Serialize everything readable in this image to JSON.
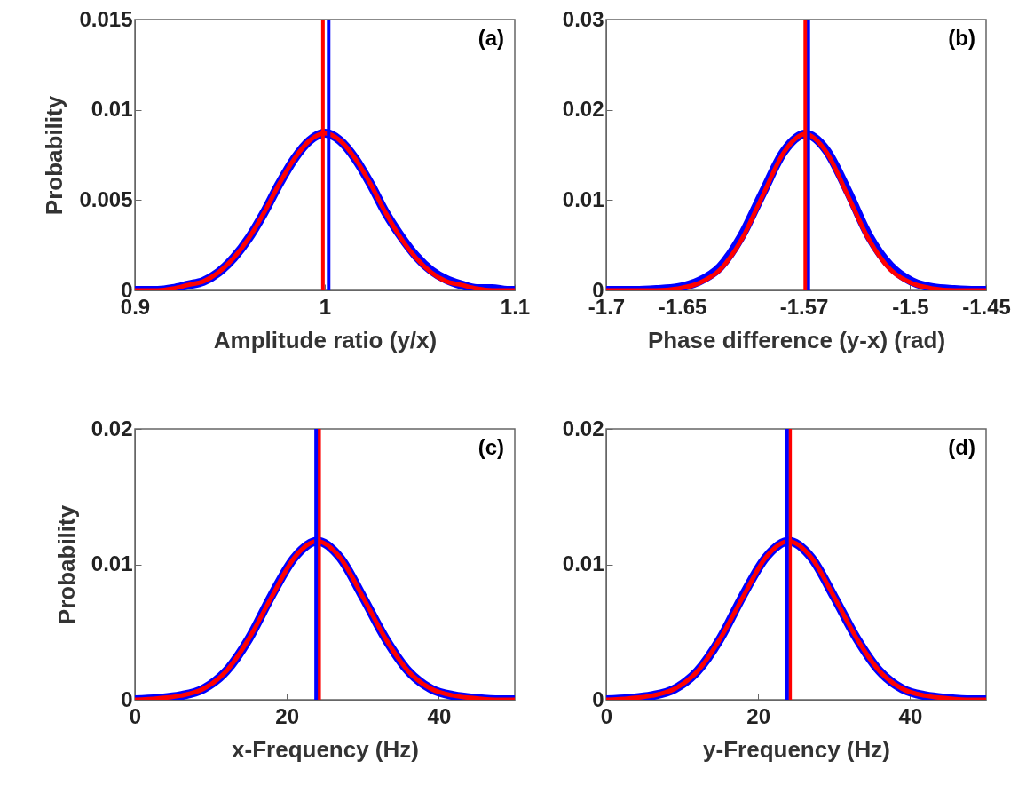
{
  "chart_data": [
    {
      "type": "line",
      "xlabel": "Amplitude ratio (y/x)",
      "ylabel": "Probability",
      "annotations": [
        "(a)"
      ],
      "x": [
        0.9,
        0.904,
        0.912,
        0.92,
        0.928,
        0.936,
        0.944,
        0.952,
        0.96,
        0.968,
        0.976,
        0.984,
        0.992,
        1,
        1.008,
        1.016,
        1.024,
        1.032,
        1.04,
        1.048,
        1.056,
        1.064,
        1.072,
        1.08,
        1.088,
        1.096,
        1.1
      ],
      "series": [
        {
          "color": "#0000ff",
          "values": [
            0,
            0,
            0,
            0.0001,
            0.0003,
            0.0005,
            0.001,
            0.0018,
            0.0029,
            0.0043,
            0.0059,
            0.0073,
            0.0083,
            0.0087,
            0.0083,
            0.0073,
            0.0059,
            0.0043,
            0.003,
            0.0019,
            0.0011,
            0.0006,
            0.0003,
            0.0001,
            0.0001,
            0,
            0
          ]
        },
        {
          "color": "#ff0000",
          "values": [
            0,
            0,
            0,
            0.0001,
            0.0003,
            0.0005,
            0.001,
            0.0018,
            0.0029,
            0.0043,
            0.0059,
            0.0073,
            0.0083,
            0.0087,
            0.0083,
            0.0073,
            0.0059,
            0.0043,
            0.0029,
            0.0018,
            0.001,
            0.0005,
            0.0003,
            0.0001,
            0,
            0,
            0
          ]
        }
      ],
      "ref_lines": [
        {
          "axis": "x",
          "value": 0.999,
          "color": "#ff0000"
        },
        {
          "axis": "x",
          "value": 1.002,
          "color": "#0000ff"
        }
      ],
      "xlim": [
        0.9,
        1.1
      ],
      "xticks": [
        0.9,
        1,
        1.1
      ],
      "ylim": [
        0,
        0.015
      ],
      "yticks": [
        0,
        0.005,
        0.01,
        0.015
      ],
      "grid": false,
      "legend": false
    },
    {
      "type": "line",
      "xlabel": "Phase difference (y-x) (rad)",
      "annotations": [
        "(b)"
      ],
      "x": [
        -1.7,
        -1.681,
        -1.667,
        -1.653,
        -1.639,
        -1.625,
        -1.611,
        -1.597,
        -1.583,
        -1.569,
        -1.555,
        -1.541,
        -1.527,
        -1.513,
        -1.499,
        -1.485,
        -1.471,
        -1.457,
        -1.45
      ],
      "series": [
        {
          "color": "#0000ff",
          "values": [
            0,
            0,
            0.0001,
            0.0003,
            0.001,
            0.0026,
            0.006,
            0.0108,
            0.0154,
            0.0173,
            0.0155,
            0.011,
            0.006,
            0.0027,
            0.001,
            0.0003,
            0.0001,
            0,
            0
          ]
        },
        {
          "color": "#ff0000",
          "values": [
            0,
            0,
            0,
            0.0002,
            0.0008,
            0.0023,
            0.0056,
            0.0105,
            0.0153,
            0.0173,
            0.0153,
            0.0105,
            0.0056,
            0.0023,
            0.0008,
            0.0002,
            0,
            0,
            0
          ]
        }
      ],
      "ref_lines": [
        {
          "axis": "x",
          "value": -1.567,
          "color": "#0000ff"
        },
        {
          "axis": "x",
          "value": -1.569,
          "color": "#ff0000"
        }
      ],
      "xlim": [
        -1.7,
        -1.45
      ],
      "xticks": [
        -1.7,
        -1.65,
        -1.57,
        -1.5,
        -1.45
      ],
      "ylim": [
        0,
        0.03
      ],
      "yticks": [
        0,
        0.01,
        0.02,
        0.03
      ],
      "grid": false,
      "legend": false
    },
    {
      "type": "line",
      "xlabel": "x-Frequency (Hz)",
      "ylabel": "Probability",
      "annotations": [
        "(c)"
      ],
      "x": [
        0,
        3,
        6,
        9,
        12,
        15,
        18,
        21,
        24,
        27,
        30,
        33,
        36,
        39,
        42,
        45,
        48,
        50
      ],
      "series": [
        {
          "color": "#0000ff",
          "values": [
            0,
            0.0001,
            0.0003,
            0.0008,
            0.0021,
            0.0045,
            0.0077,
            0.0105,
            0.0117,
            0.0105,
            0.0076,
            0.0045,
            0.0021,
            0.0008,
            0.0003,
            0.0001,
            0,
            0
          ]
        },
        {
          "color": "#ff0000",
          "values": [
            0,
            0.0001,
            0.0003,
            0.0008,
            0.0021,
            0.0045,
            0.0076,
            0.0105,
            0.0117,
            0.0105,
            0.0076,
            0.0045,
            0.0021,
            0.0008,
            0.0003,
            0.0001,
            0,
            0
          ]
        }
      ],
      "ref_lines": [
        {
          "axis": "x",
          "value": 24.25,
          "color": "#ff0000"
        },
        {
          "axis": "x",
          "value": 23.85,
          "color": "#0000ff"
        }
      ],
      "xlim": [
        0,
        50
      ],
      "xticks": [
        0,
        20,
        40
      ],
      "ylim": [
        0,
        0.02
      ],
      "yticks": [
        0,
        0.01,
        0.02
      ],
      "grid": false,
      "legend": false
    },
    {
      "type": "line",
      "xlabel": "y-Frequency (Hz)",
      "annotations": [
        "(d)"
      ],
      "x": [
        0,
        3,
        6,
        9,
        12,
        15,
        18,
        21,
        24,
        27,
        30,
        33,
        36,
        39,
        42,
        45,
        48,
        50
      ],
      "series": [
        {
          "color": "#0000ff",
          "values": [
            0,
            0.0001,
            0.0003,
            0.0008,
            0.0021,
            0.0045,
            0.0077,
            0.0105,
            0.0117,
            0.0105,
            0.0076,
            0.0045,
            0.0021,
            0.0008,
            0.0003,
            0.0001,
            0,
            0
          ]
        },
        {
          "color": "#ff0000",
          "values": [
            0,
            0.0001,
            0.0003,
            0.0008,
            0.0021,
            0.0045,
            0.0076,
            0.0105,
            0.0117,
            0.0105,
            0.0076,
            0.0045,
            0.0021,
            0.0008,
            0.0003,
            0.0001,
            0,
            0
          ]
        }
      ],
      "ref_lines": [
        {
          "axis": "x",
          "value": 24.2,
          "color": "#ff0000"
        },
        {
          "axis": "x",
          "value": 23.8,
          "color": "#0000ff"
        }
      ],
      "xlim": [
        0,
        50
      ],
      "xticks": [
        0,
        20,
        40
      ],
      "ylim": [
        0,
        0.02
      ],
      "yticks": [
        0,
        0.01,
        0.02
      ],
      "grid": false,
      "legend": false
    }
  ]
}
